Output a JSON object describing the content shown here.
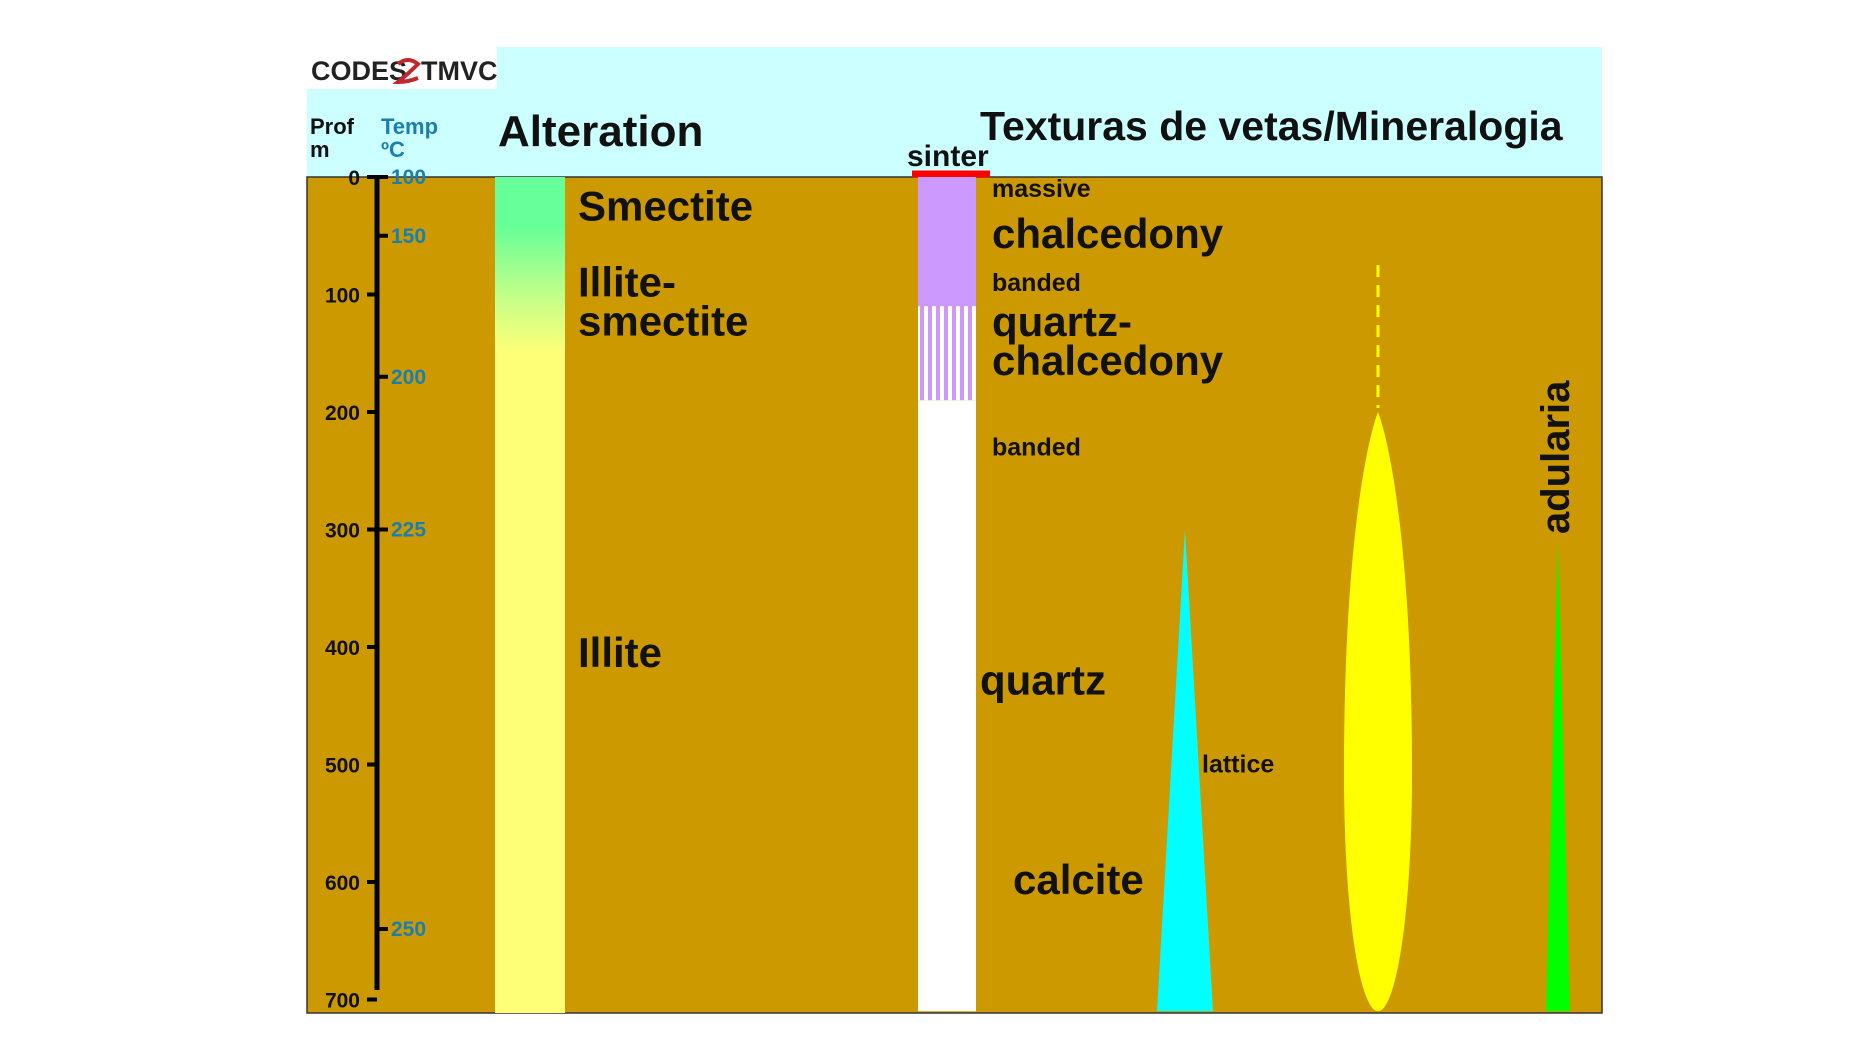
{
  "header": {
    "logo_text_left": "CODES",
    "logo_text_right": "TMVC",
    "depth_header": [
      "Prof",
      "m"
    ],
    "temp_header": [
      "Temp",
      "ºC"
    ],
    "alteration_title": "Alteration",
    "vein_title": "Texturas de vetas/Mineralogia"
  },
  "scale": {
    "depth_max": 700,
    "depth_ticks": [
      0,
      100,
      200,
      300,
      400,
      500,
      600,
      700
    ],
    "temp_ticks": [
      {
        "label": "100",
        "depth": 0
      },
      {
        "label": "150",
        "depth": 50
      },
      {
        "label": "200",
        "depth": 170
      },
      {
        "label": "225",
        "depth": 300
      },
      {
        "label": "250",
        "depth": 640
      }
    ]
  },
  "alteration": {
    "zones": [
      {
        "label": "Smectite",
        "from": 0,
        "to": 75,
        "color": "#66ff99"
      },
      {
        "label": "Illite-smectite",
        "from": 75,
        "to": 150,
        "color": "#c8ff88"
      },
      {
        "label": "Illite",
        "from": 150,
        "to": 710,
        "color": "#ffff77"
      }
    ],
    "labels": [
      {
        "lines": [
          "Smectite"
        ],
        "depth": 30
      },
      {
        "lines": [
          "Illite-",
          "smectite"
        ],
        "depth": 95
      },
      {
        "lines": [
          "Illite"
        ],
        "depth": 410
      }
    ]
  },
  "vein": {
    "sinter_label": "sinter",
    "sinter_color": "#ff0000",
    "silica_column": [
      {
        "name": "chalcedony",
        "from": 0,
        "to": 110,
        "color": "#cc99ff",
        "pattern": "solid"
      },
      {
        "name": "quartz-chalcedony",
        "from": 110,
        "to": 190,
        "color": "#cc99ff",
        "pattern": "striped"
      },
      {
        "name": "quartz",
        "from": 190,
        "to": 710,
        "color": "#ffffff",
        "pattern": "solid"
      }
    ],
    "texture_labels": [
      {
        "text": "massive",
        "depth": 10
      },
      {
        "text": "banded",
        "depth": 90
      },
      {
        "text": "banded",
        "depth": 230
      },
      {
        "text": "lattice",
        "depth": 500
      }
    ],
    "mineral_labels": [
      {
        "lines": [
          "chalcedony"
        ],
        "depth": 50
      },
      {
        "lines": [
          "quartz-",
          "chalcedony"
        ],
        "depth": 125
      },
      {
        "lines": [
          "quartz"
        ],
        "depth": 430
      },
      {
        "lines": [
          "calcite"
        ],
        "depth": 600
      }
    ],
    "calcite": {
      "top": 300,
      "bottom": 710,
      "color": "#00ffff"
    },
    "yellow_body": {
      "dash_top": 75,
      "solid_top": 200,
      "bottom": 710,
      "color": "#ffff00"
    },
    "adularia": {
      "label": "adularia",
      "top": 310,
      "bottom": 710,
      "color": "#00ff00"
    }
  },
  "colors": {
    "header_bg": "#ccffff",
    "panel_bg": "#cc9900",
    "axis": "#000000",
    "temp_text": "#1a7fb0",
    "text": "#111111"
  }
}
